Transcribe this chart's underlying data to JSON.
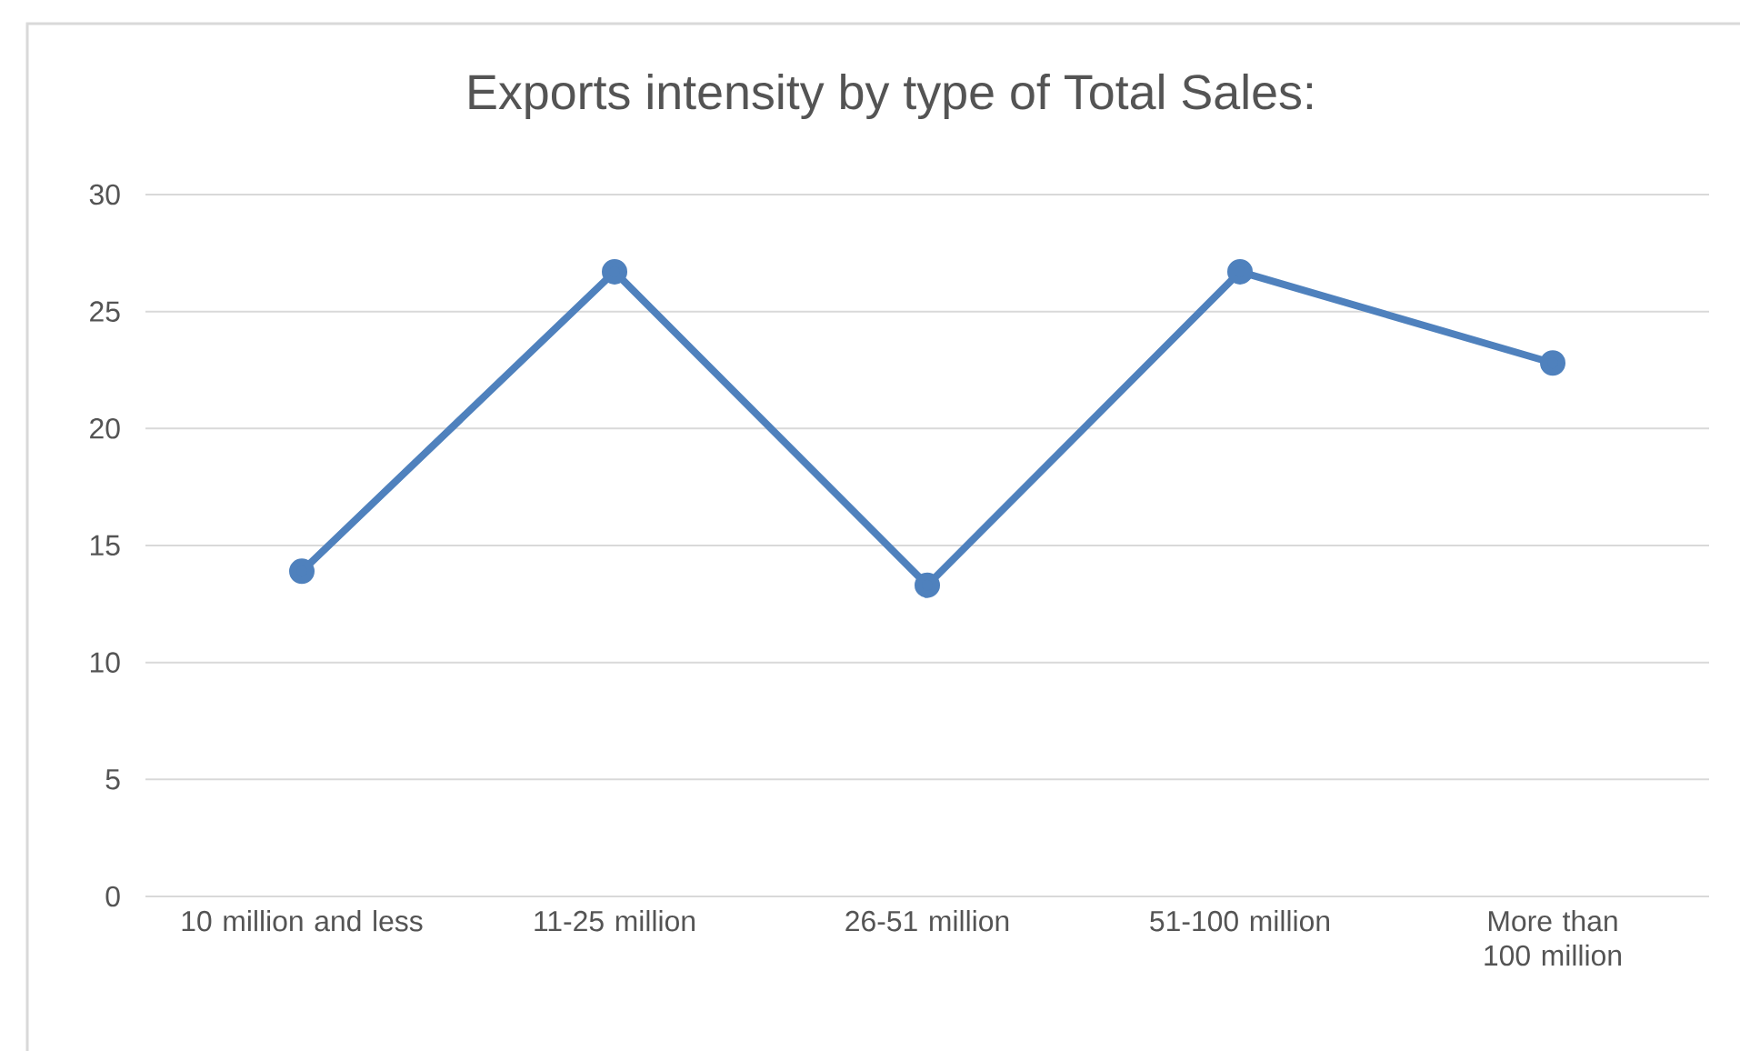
{
  "chart_data": {
    "type": "line",
    "title": "Exports intensity by type of Total Sales:",
    "categories": [
      "10 million and less",
      "11-25 million",
      "26-51 million",
      "51-100 million",
      "More than 100 million"
    ],
    "series": [
      {
        "color": "#4f81bd",
        "values": [
          13.9,
          26.7,
          13.3,
          26.7,
          22.8
        ]
      }
    ],
    "ylim": [
      0,
      30
    ],
    "yticks": [
      0,
      5,
      10,
      15,
      20,
      25,
      30
    ],
    "grid": "y",
    "marker": "circle",
    "line_style": "solid"
  }
}
